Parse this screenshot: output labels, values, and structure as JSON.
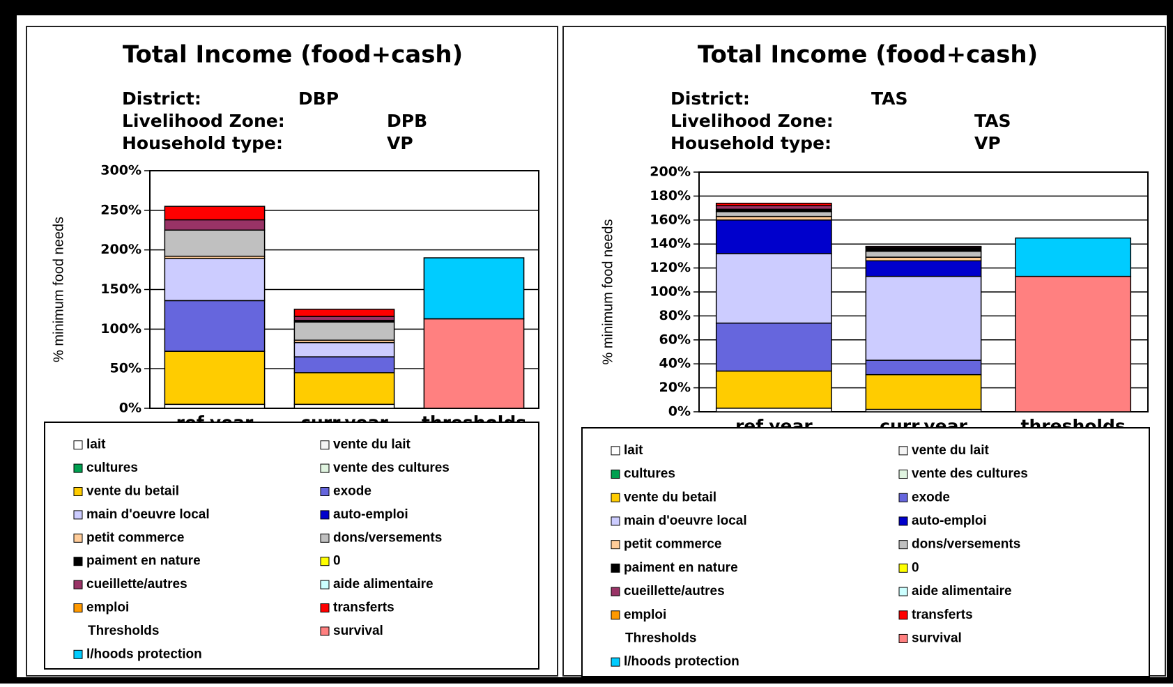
{
  "chart_data": [
    {
      "type": "stacked-bar",
      "title": "Total Income (food+cash)",
      "info": [
        [
          "District:",
          "DBP"
        ],
        [
          "Livelihood Zone:",
          "DPB"
        ],
        [
          "Household type:",
          "VP"
        ]
      ],
      "y_label": "% minimum food needs",
      "categories": [
        "ref.year",
        "curr.year",
        "thresholds"
      ],
      "ylim": [
        0,
        300
      ],
      "yticks": [
        {
          "value": 0,
          "label": "0%"
        },
        {
          "value": 50,
          "label": "50%"
        },
        {
          "value": 100,
          "label": "100%"
        },
        {
          "value": 150,
          "label": "150%"
        },
        {
          "value": 200,
          "label": "200%"
        },
        {
          "value": 250,
          "label": "250%"
        },
        {
          "value": 300,
          "label": "300%"
        }
      ],
      "grid": true,
      "legend_heading": "Thresholds",
      "series": [
        {
          "name": "lait",
          "color": "#ffffff",
          "values": [
            5,
            5,
            0
          ]
        },
        {
          "name": "vente du lait",
          "color": "#f4f4f4",
          "values": [
            0,
            0,
            0
          ]
        },
        {
          "name": "cultures",
          "color": "#00a050",
          "values": [
            0,
            0,
            0
          ]
        },
        {
          "name": "vente des cultures",
          "color": "#e0f4e0",
          "values": [
            0,
            0,
            0
          ]
        },
        {
          "name": "vente du betail",
          "color": "#ffcc00",
          "values": [
            67,
            40,
            0
          ]
        },
        {
          "name": "exode",
          "color": "#6666dd",
          "values": [
            64,
            20,
            0
          ]
        },
        {
          "name": "main d'oeuvre local",
          "color": "#ccccff",
          "values": [
            53,
            18,
            0
          ]
        },
        {
          "name": "auto-emploi",
          "color": "#0000cc",
          "values": [
            0,
            0,
            0
          ]
        },
        {
          "name": "petit commerce",
          "color": "#ffcc99",
          "values": [
            3,
            3,
            0
          ]
        },
        {
          "name": "dons/versements",
          "color": "#c0c0c0",
          "values": [
            33,
            23,
            0
          ]
        },
        {
          "name": "paiment en nature",
          "color": "#000000",
          "values": [
            0,
            2,
            0
          ]
        },
        {
          "name": "0",
          "color": "#ffff00",
          "values": [
            0,
            0,
            0
          ]
        },
        {
          "name": "cueillette/autres",
          "color": "#993366",
          "values": [
            13,
            5,
            0
          ]
        },
        {
          "name": "aide alimentaire",
          "color": "#ccffff",
          "values": [
            0,
            0,
            0
          ]
        },
        {
          "name": "emploi",
          "color": "#ff9900",
          "values": [
            0,
            0,
            0
          ]
        },
        {
          "name": "transferts",
          "color": "#ff0000",
          "values": [
            17,
            9,
            0
          ]
        },
        {
          "name": "survival",
          "color": "#ff8080",
          "values": [
            0,
            0,
            113
          ]
        },
        {
          "name": "l/hoods protection",
          "color": "#00ccff",
          "values": [
            0,
            0,
            77
          ]
        }
      ]
    },
    {
      "type": "stacked-bar",
      "title": "Total Income (food+cash)",
      "info": [
        [
          "District:",
          "TAS"
        ],
        [
          "Livelihood Zone:",
          "TAS"
        ],
        [
          "Household type:",
          "VP"
        ]
      ],
      "y_label": "% minimum food needs",
      "categories": [
        "ref.year",
        "curr.year",
        "thresholds"
      ],
      "ylim": [
        0,
        200
      ],
      "yticks": [
        {
          "value": 0,
          "label": "0%"
        },
        {
          "value": 20,
          "label": "20%"
        },
        {
          "value": 40,
          "label": "40%"
        },
        {
          "value": 60,
          "label": "60%"
        },
        {
          "value": 80,
          "label": "80%"
        },
        {
          "value": 100,
          "label": "100%"
        },
        {
          "value": 120,
          "label": "120%"
        },
        {
          "value": 140,
          "label": "140%"
        },
        {
          "value": 160,
          "label": "160%"
        },
        {
          "value": 180,
          "label": "180%"
        },
        {
          "value": 200,
          "label": "200%"
        }
      ],
      "grid": true,
      "legend_heading": "Thresholds",
      "series": [
        {
          "name": "lait",
          "color": "#ffffff",
          "values": [
            3,
            2,
            0
          ]
        },
        {
          "name": "vente du lait",
          "color": "#f4f4f4",
          "values": [
            0,
            0,
            0
          ]
        },
        {
          "name": "cultures",
          "color": "#00a050",
          "values": [
            0,
            0,
            0
          ]
        },
        {
          "name": "vente des cultures",
          "color": "#e0f4e0",
          "values": [
            0,
            0,
            0
          ]
        },
        {
          "name": "vente du betail",
          "color": "#ffcc00",
          "values": [
            31,
            29,
            0
          ]
        },
        {
          "name": "exode",
          "color": "#6666dd",
          "values": [
            40,
            12,
            0
          ]
        },
        {
          "name": "main d'oeuvre local",
          "color": "#ccccff",
          "values": [
            58,
            70,
            0
          ]
        },
        {
          "name": "auto-emploi",
          "color": "#0000cc",
          "values": [
            28,
            13,
            0
          ]
        },
        {
          "name": "petit commerce",
          "color": "#ffcc99",
          "values": [
            3,
            3,
            0
          ]
        },
        {
          "name": "dons/versements",
          "color": "#c0c0c0",
          "values": [
            4,
            5,
            0
          ]
        },
        {
          "name": "paiment en nature",
          "color": "#000000",
          "values": [
            2,
            3,
            0
          ]
        },
        {
          "name": "0",
          "color": "#ffff00",
          "values": [
            0,
            0,
            0
          ]
        },
        {
          "name": "cueillette/autres",
          "color": "#993366",
          "values": [
            3,
            1,
            0
          ]
        },
        {
          "name": "aide alimentaire",
          "color": "#ccffff",
          "values": [
            0,
            0,
            0
          ]
        },
        {
          "name": "emploi",
          "color": "#ff9900",
          "values": [
            0,
            0,
            0
          ]
        },
        {
          "name": "transferts",
          "color": "#ff0000",
          "values": [
            2,
            0,
            0
          ]
        },
        {
          "name": "survival",
          "color": "#ff8080",
          "values": [
            0,
            0,
            113
          ]
        },
        {
          "name": "l/hoods protection",
          "color": "#00ccff",
          "values": [
            0,
            0,
            32
          ]
        }
      ]
    }
  ]
}
